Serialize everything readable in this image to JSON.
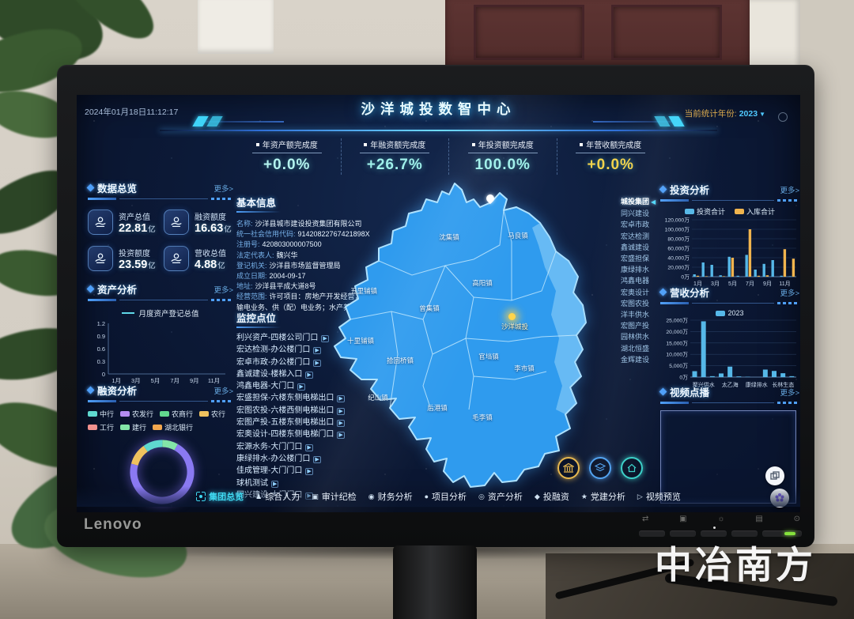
{
  "scene": {
    "watermark": "中冶南方",
    "monitor_brand": "Lenovo"
  },
  "header": {
    "datetime": "2024年01月18日11:12:17",
    "title": "沙洋城投数智中心",
    "year_label": "当前统计年份:",
    "year_value": "2023",
    "year_caret": "▼"
  },
  "kpis": [
    {
      "label": "年资产额完成度",
      "value": "+0.0%",
      "color": "#b4f4ef"
    },
    {
      "label": "年融资额完成度",
      "value": "+26.7%",
      "color": "#9ff0ea"
    },
    {
      "label": "年投资额完成度",
      "value": "100.0%",
      "color": "#9ff0ea"
    },
    {
      "label": "年营收额完成度",
      "value": "+0.0%",
      "color": "#f2d24b"
    }
  ],
  "overview": {
    "title": "数据总览",
    "more": "更多>",
    "cards": [
      {
        "label": "资产总值",
        "value": "22.81",
        "unit": "亿"
      },
      {
        "label": "融资额度",
        "value": "16.63",
        "unit": "亿"
      },
      {
        "label": "投资额度",
        "value": "23.59",
        "unit": "亿"
      },
      {
        "label": "营收总值",
        "value": "4.88",
        "unit": "亿"
      }
    ]
  },
  "asset_panel": {
    "title": "资产分析",
    "more": "更多>",
    "legend": "月度资产登记总值",
    "chart": {
      "type": "line",
      "y_ticks": [
        "1.2",
        "0.9",
        "0.6",
        "0.3",
        "0"
      ],
      "x_labels": [
        "1月",
        "3月",
        "5月",
        "7月",
        "9月",
        "11月"
      ],
      "values": [
        0,
        0,
        0,
        0,
        0,
        0,
        0,
        0,
        0,
        0,
        0,
        0
      ],
      "ymax": 1.2
    }
  },
  "financing_panel": {
    "title": "融资分析",
    "more": "更多>",
    "legend": [
      {
        "name": "中行",
        "color": "#5fd8cf"
      },
      {
        "name": "农发行",
        "color": "#b48df2"
      },
      {
        "name": "农商行",
        "color": "#62d98e"
      },
      {
        "name": "农行",
        "color": "#f0c25e"
      },
      {
        "name": "工行",
        "color": "#f2918e"
      },
      {
        "name": "建行",
        "color": "#84e6a8"
      },
      {
        "name": "湖北银行",
        "color": "#f2a74e"
      }
    ],
    "chart": {
      "type": "donut",
      "slices": [
        {
          "name": "农行",
          "value": 11,
          "color": "#f0c25e"
        },
        {
          "name": "中行",
          "value": 10,
          "color": "#5fd8cf"
        },
        {
          "name": "建行",
          "value": 8,
          "color": "#84e6a8"
        },
        {
          "name": "农发行",
          "value": 71,
          "color": "#8a79f2"
        }
      ]
    }
  },
  "basic_info": {
    "title": "基本信息",
    "rows": [
      {
        "label": "名称:",
        "value": "沙洋县城市建设投资集团有限公司"
      },
      {
        "label": "统一社会信用代码:",
        "value": "91420822767421898X"
      },
      {
        "label": "注册号:",
        "value": "420803000007500"
      },
      {
        "label": "法定代表人:",
        "value": "魏兴华"
      },
      {
        "label": "登记机关:",
        "value": "沙洋县市场监督管理局"
      },
      {
        "label": "成立日期:",
        "value": "2004-09-17"
      },
      {
        "label": "地址:",
        "value": "沙洋县平成大道8号"
      },
      {
        "label": "经营范围:",
        "value": "许可项目：房地产开发经营；发电业务、输电业务、供（配）电业务；水产养殖…"
      }
    ]
  },
  "monitor_panel": {
    "title": "监控点位",
    "play_icon": "▶",
    "items": [
      "利兴资产-四楼公司门口",
      "宏达检测-办公楼门口",
      "宏卓市政-办公楼门口",
      "鑫诚建设-楼梯入口",
      "鸿鑫电器-大门口",
      "宏盛担保-六楼东侧电梯出口",
      "宏图农投-六楼西侧电梯出口",
      "宏图产投-五楼东侧电梯出口",
      "宏奥设计-四楼东侧电梯门口",
      "宏源水务-大门门口",
      "康绿排水-办公楼门口",
      "佳成管理-大门门口",
      "球机测试",
      "同兴建设-大门门口"
    ]
  },
  "map": {
    "towns": [
      "沈集镇",
      "马良镇",
      "高阳镇",
      "五里铺镇",
      "曾集镇",
      "官垱镇",
      "十里铺镇",
      "拾回桥镇",
      "纪山镇",
      "后港镇",
      "毛李镇",
      "李市镇"
    ],
    "marker": "沙洋城投"
  },
  "company_list": {
    "active_index": 0,
    "items": [
      "城投集团",
      "同兴建设",
      "宏卓市政",
      "宏达检测",
      "鑫诚建设",
      "宏盛担保",
      "康绿排水",
      "鸿鑫电器",
      "宏奥设计",
      "宏图农投",
      "洋丰供水",
      "宏图产投",
      "园林供水",
      "湖北恒盛",
      "金辉建设"
    ]
  },
  "investment_panel": {
    "title": "投资分析",
    "more": "更多>",
    "legend": [
      {
        "name": "投资合计",
        "color": "#56b8e8"
      },
      {
        "name": "入库合计",
        "color": "#f0b44e"
      }
    ],
    "chart": {
      "type": "bar",
      "ymax": 120000,
      "y_ticks": [
        "120,000万",
        "100,000万",
        "80,000万",
        "60,000万",
        "40,000万",
        "20,000万",
        "0万"
      ],
      "x_labels": [
        "1月",
        "3月",
        "5月",
        "7月",
        "9月",
        "11月"
      ],
      "series": [
        {
          "name": "投资合计",
          "color": "#56b8e8",
          "values": [
            5000,
            30000,
            25000,
            3000,
            42000,
            2000,
            46000,
            15000,
            27000,
            35000,
            2000,
            1000
          ]
        },
        {
          "name": "入库合计",
          "color": "#f0b44e",
          "values": [
            2000,
            1000,
            0,
            1000,
            40000,
            0,
            100000,
            2000,
            3000,
            0,
            58000,
            38000
          ]
        }
      ]
    }
  },
  "revenue_panel": {
    "title": "营收分析",
    "more": "更多>",
    "legend": [
      {
        "name": "2023",
        "color": "#56b8e8"
      }
    ],
    "chart": {
      "type": "bar",
      "ymax": 25000,
      "y_ticks": [
        "25,000万",
        "20,000万",
        "15,000万",
        "10,000万",
        "5,000万",
        "0万"
      ],
      "categories": [
        "聚兴供水",
        "太乙海",
        "康绿排水",
        "长林生态"
      ],
      "values": [
        2600,
        24500,
        400,
        1600,
        4600,
        300,
        150,
        100,
        3300,
        2700,
        1700,
        400
      ],
      "color": "#56b8e8"
    }
  },
  "video_panel": {
    "title": "视频点播",
    "more": "更多>"
  },
  "bottom_nav": {
    "items": [
      {
        "label": "集团总览",
        "active": true,
        "icon": ""
      },
      {
        "label": "综合人力",
        "active": false,
        "icon": "♟"
      },
      {
        "label": "审计纪检",
        "active": false,
        "icon": "▣"
      },
      {
        "label": "财务分析",
        "active": false,
        "icon": "◉"
      },
      {
        "label": "项目分析",
        "active": false,
        "icon": "●"
      },
      {
        "label": "资产分析",
        "active": false,
        "icon": "◎"
      },
      {
        "label": "投融资",
        "active": false,
        "icon": "◆"
      },
      {
        "label": "党建分析",
        "active": false,
        "icon": "★"
      },
      {
        "label": "视频预览",
        "active": false,
        "icon": "▷"
      }
    ]
  },
  "monitor_controls": {
    "icons": [
      "⇄",
      "▣",
      "☼",
      "▤",
      "⊙"
    ]
  }
}
